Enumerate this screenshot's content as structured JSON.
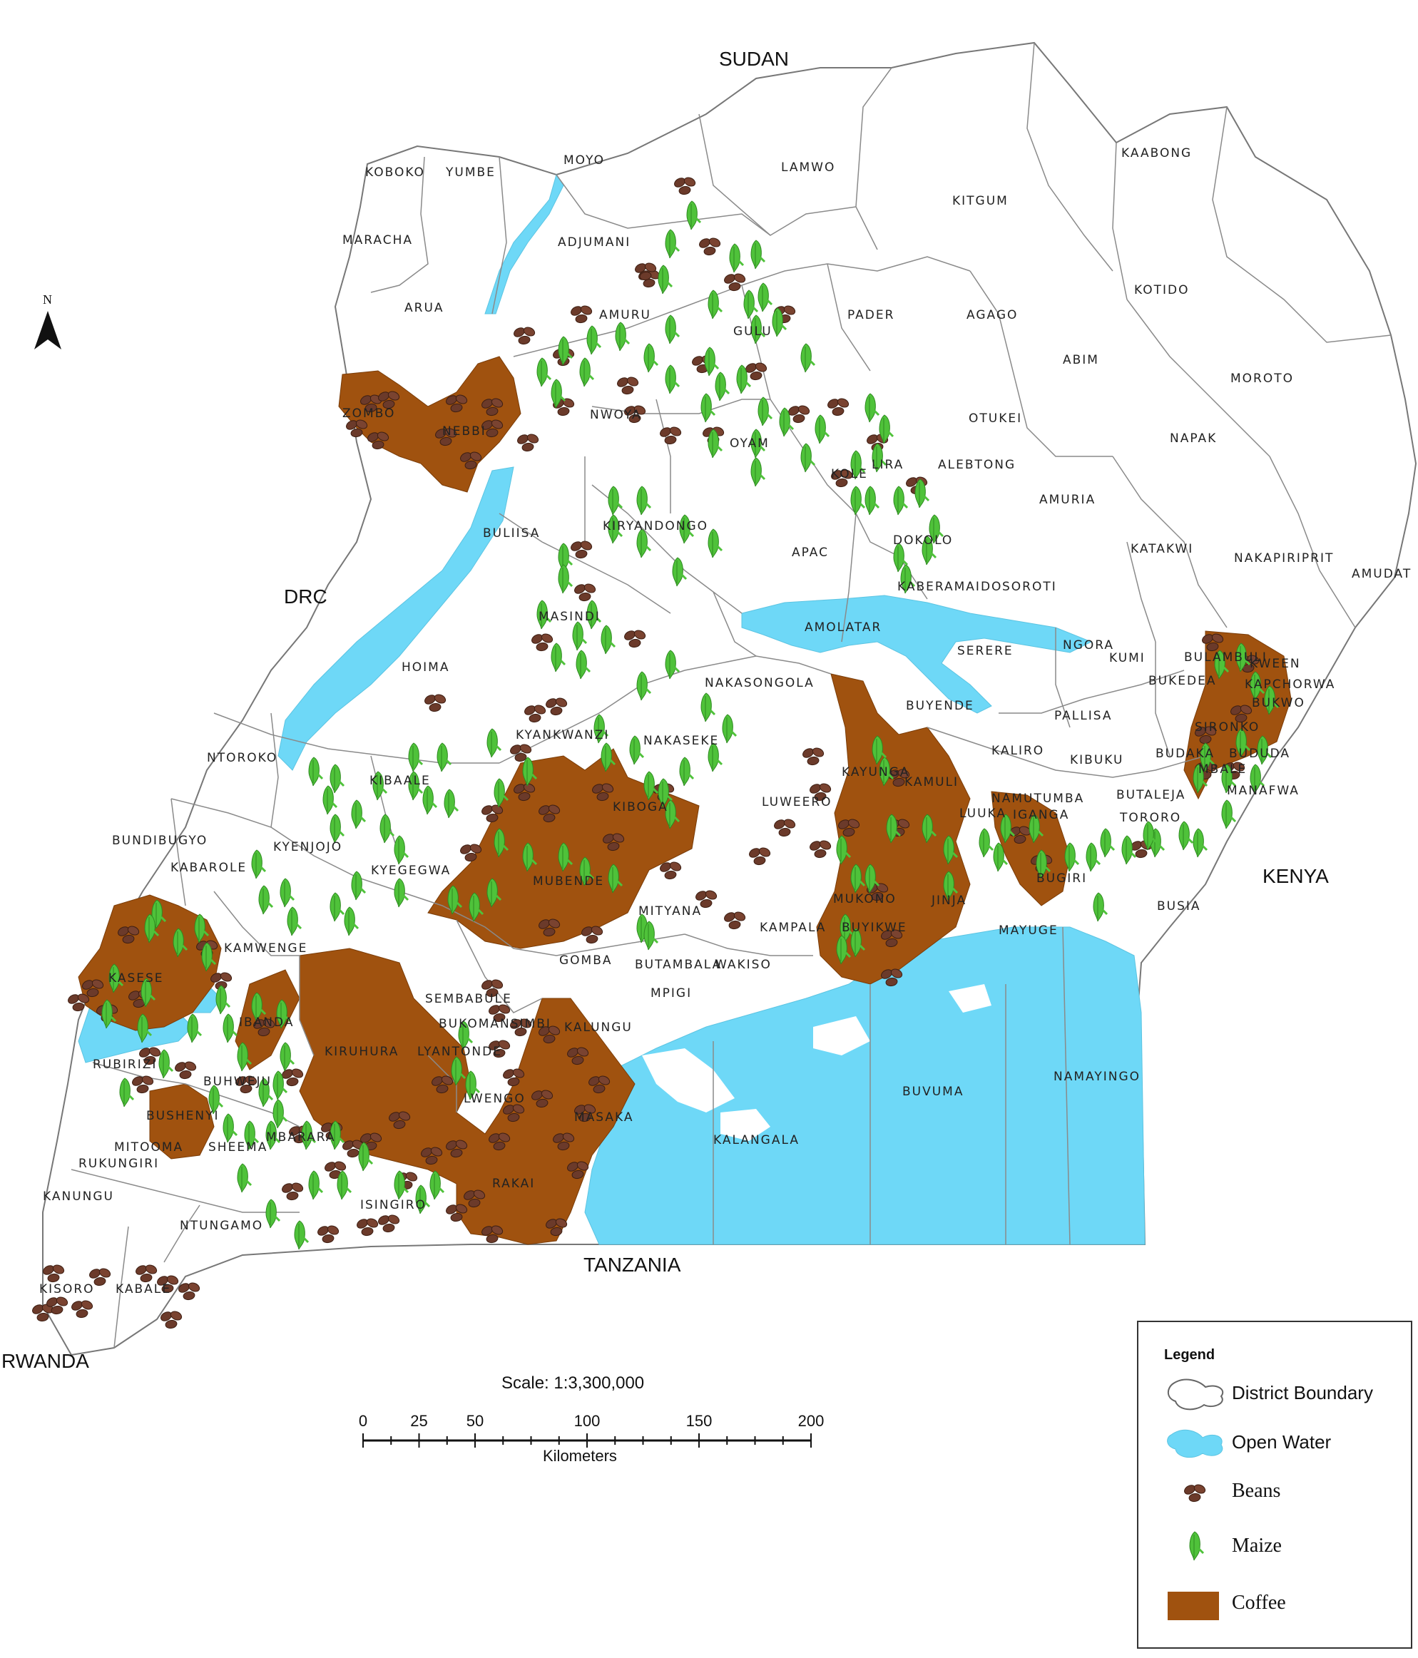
{
  "map": {
    "countries": [
      {
        "id": "sudan",
        "label": "SUDAN"
      },
      {
        "id": "drc",
        "label": "DRC"
      },
      {
        "id": "kenya",
        "label": "KENYA"
      },
      {
        "id": "tanzania",
        "label": "TANZANIA"
      },
      {
        "id": "rwanda",
        "label": "RWANDA"
      }
    ],
    "districts": [
      "KOBOKO",
      "YUMBE",
      "MOYO",
      "LAMWO",
      "KAABONG",
      "KITGUM",
      "MARACHA",
      "ADJUMANI",
      "ARUA",
      "AMURU",
      "GULU",
      "PADER",
      "AGAGO",
      "KOTIDO",
      "ABIM",
      "MOROTO",
      "ZOMBO",
      "NEBBI",
      "NWOYA",
      "OYAM",
      "KOLE",
      "LIRA",
      "ALEBTONG",
      "OTUKEI",
      "NAPAK",
      "AMURIA",
      "BULIISA",
      "KIRYANDONGO",
      "APAC",
      "DOKOLO",
      "KATAKWI",
      "NAKAPIRIPRIT",
      "AMUDAT",
      "MASINDI",
      "KABERAMAIDO",
      "SOROTI",
      "AMOLATAR",
      "SERERE",
      "NGORA",
      "KUMI",
      "BULAMBULI",
      "KWEEN",
      "HOIMA",
      "NAKASONGOLA",
      "BUKEDEA",
      "KAPCHORWA",
      "BUYENDE",
      "PALLISA",
      "BUKWO",
      "SIRONKO",
      "BUDAKA",
      "MBALE",
      "BUDUDA",
      "NTOROKO",
      "KYANKWANZI",
      "NAKASEKE",
      "KALIRO",
      "KIBUKU",
      "KIBAALE",
      "KAYUNGA",
      "KAMULI",
      "LUWEERO",
      "NAMUTUMBA",
      "BUTALEJA",
      "MANAFWA",
      "KIBOGA",
      "LUUKA",
      "IGANGA",
      "TORORO",
      "BUNDIBUGYO",
      "KYENJOJO",
      "KABAROLE",
      "KYEGEGWA",
      "MUBENDE",
      "MUKONO",
      "JINJA",
      "BUGIRI",
      "MITYANA",
      "BUSIA",
      "KAMWENGE",
      "KAMPALA",
      "BUYIKWE",
      "MAYUGE",
      "KASESE",
      "GOMBA",
      "BUTAMBALA",
      "WAKISO",
      "SEMBABULE",
      "MPIGI",
      "IBANDA",
      "BUKOMANSIMBI",
      "KALUNGU",
      "KIRUHURA",
      "LYANTONDE",
      "RUBIRIZI",
      "BUHWEJU",
      "NAMAYINGO",
      "LWENGO",
      "BUVUMA",
      "BUSHENYI",
      "MASAKA",
      "MBARARA",
      "KALANGALA",
      "MITOOMA",
      "SHEEMA",
      "RUKUNGIRI",
      "RAKAI",
      "KANUNGU",
      "ISINGIRO",
      "NTUNGAMO",
      "KISORO",
      "KABALE"
    ],
    "north_label": "N"
  },
  "legend": {
    "title": "Legend",
    "items": [
      {
        "label": "District Boundary",
        "symbol": "boundary"
      },
      {
        "label": "Open Water",
        "symbol": "water"
      },
      {
        "label": "Beans",
        "symbol": "beans"
      },
      {
        "label": "Maize",
        "symbol": "maize"
      },
      {
        "label": "Coffee",
        "symbol": "coffee"
      }
    ]
  },
  "scale": {
    "title": "Scale:  1:3,300,000",
    "unit": "Kilometers",
    "ticks": [
      "0",
      "25",
      "50",
      "100",
      "150",
      "200"
    ]
  },
  "colors": {
    "water": "#6ed8f7",
    "coffee": "#a0520f",
    "boundary": "#8a8a8a",
    "maize": "#4fc23a",
    "beans": "#6b3a2a"
  }
}
